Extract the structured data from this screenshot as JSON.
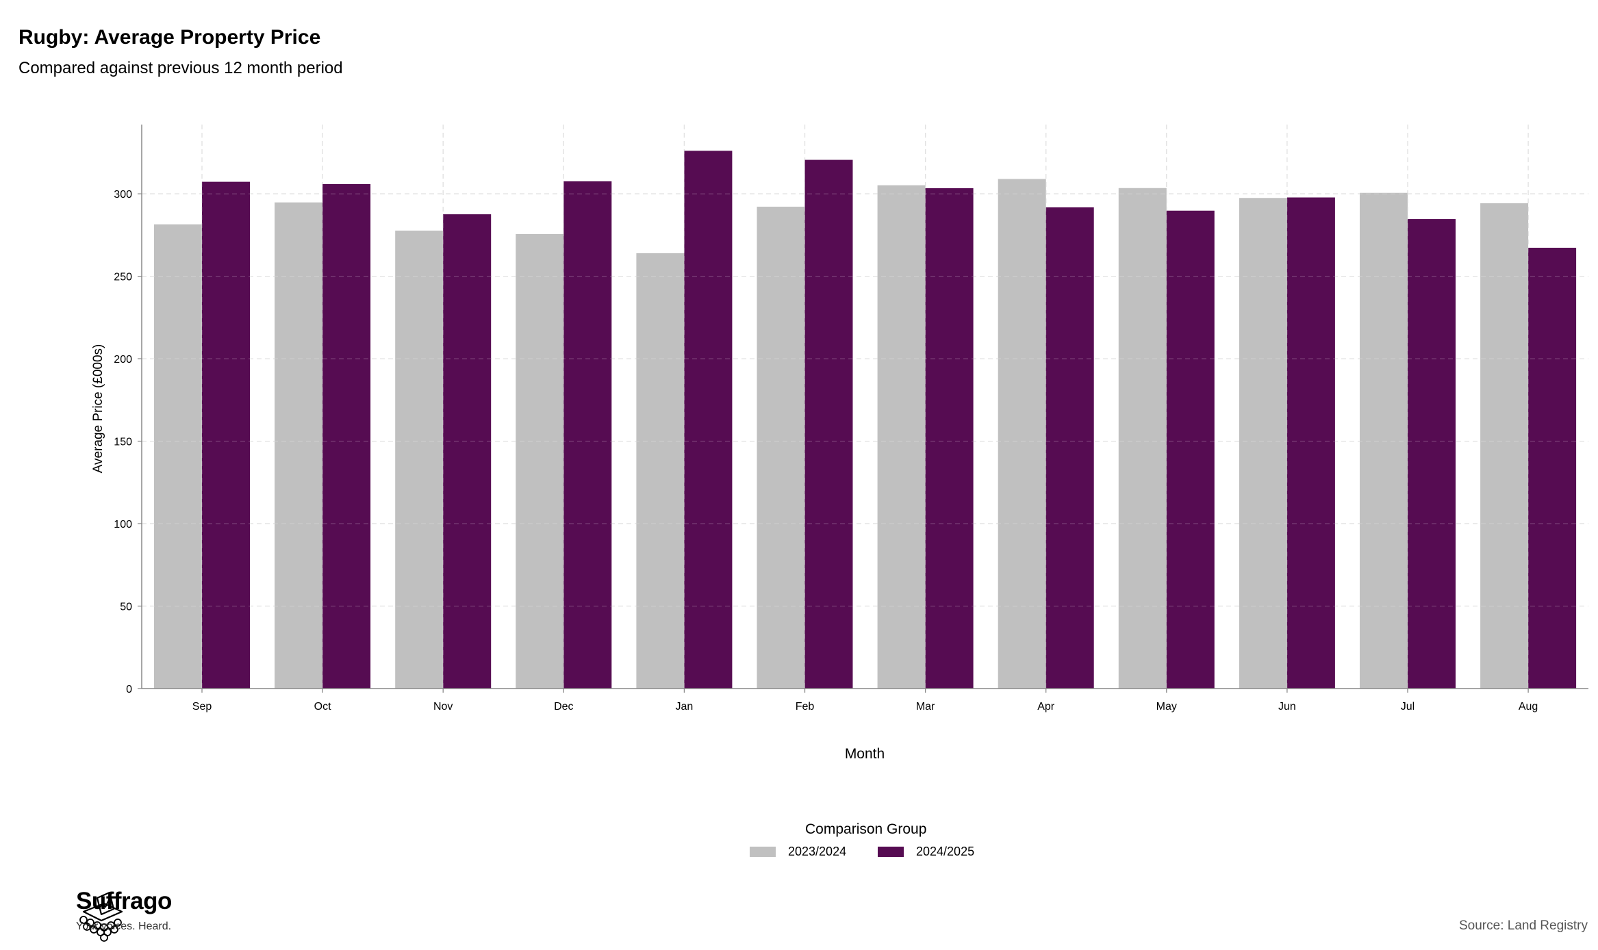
{
  "header": {
    "title": "Rugby: Average Property Price",
    "subtitle": "Compared against previous 12 month period"
  },
  "chart_data": {
    "type": "bar",
    "xlabel": "Month",
    "ylabel": "Average Price (£000s)",
    "categories": [
      "Sep",
      "Oct",
      "Nov",
      "Dec",
      "Jan",
      "Feb",
      "Mar",
      "Apr",
      "May",
      "Jun",
      "Jul",
      "Aug"
    ],
    "yticks": [
      0,
      50,
      100,
      150,
      200,
      250,
      300
    ],
    "ylim": [
      0,
      342
    ],
    "grid": true,
    "series": [
      {
        "name": "2023/2024",
        "color": "#c0c0c0",
        "values": [
          281.5,
          294.8,
          277.7,
          275.6,
          264.0,
          292.2,
          305.2,
          309.0,
          303.5,
          297.5,
          300.6,
          294.3
        ]
      },
      {
        "name": "2024/2025",
        "color": "#560c52",
        "values": [
          307.3,
          305.9,
          287.6,
          307.6,
          326.1,
          320.6,
          303.4,
          291.8,
          289.8,
          297.8,
          284.7,
          267.3
        ]
      }
    ],
    "legend": {
      "title": "Comparison Group",
      "position": "bottom-center"
    }
  },
  "branding": {
    "name": "Suffrago",
    "tagline": "Your voices. Heard.",
    "logo_icon": "ballot-box-icon"
  },
  "footer": {
    "source": "Source: Land Registry"
  }
}
